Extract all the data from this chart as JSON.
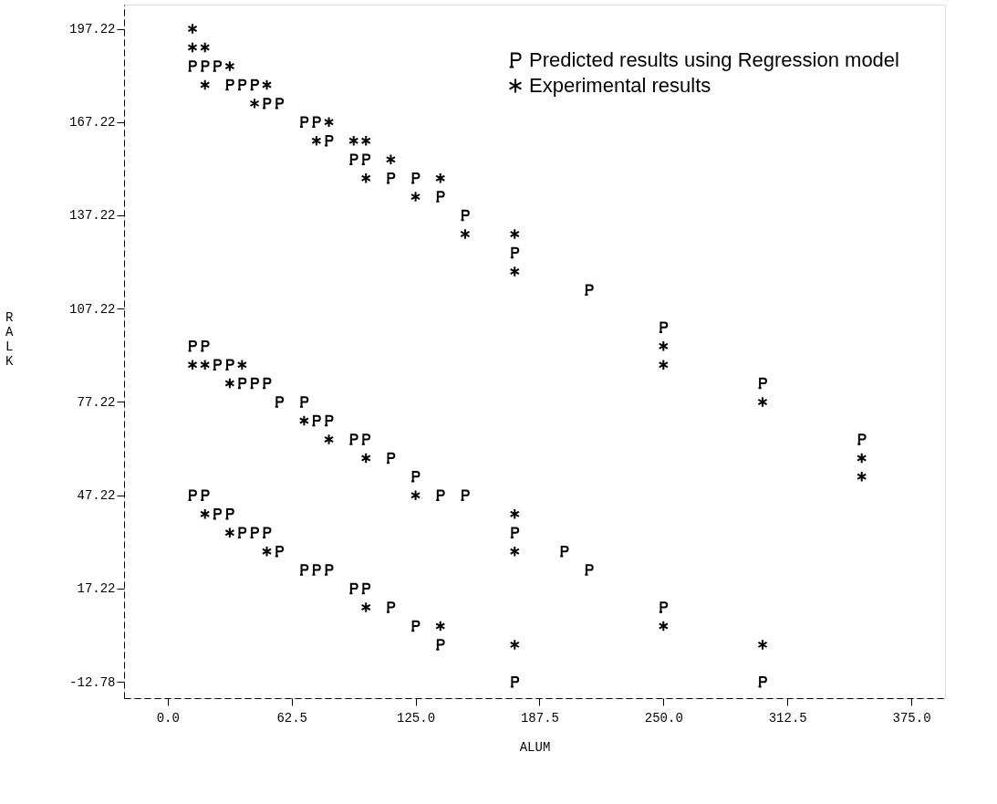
{
  "chart_data": {
    "type": "scatter",
    "xlabel": "ALUM",
    "ylabel": "RALK",
    "xlim": [
      -22,
      392
    ],
    "ylim": [
      -18,
      205
    ],
    "xticks": [
      {
        "value": 0,
        "label": "0.0"
      },
      62.5,
      {
        "value": 125,
        "label": "125.0"
      },
      187.5,
      {
        "value": 250,
        "label": "250.0"
      },
      312.5,
      {
        "value": 375,
        "label": "375.0"
      }
    ],
    "yticks": [
      -12.78,
      17.22,
      47.22,
      77.22,
      107.22,
      137.22,
      167.22,
      197.22
    ],
    "grid": false,
    "legend": "top right",
    "series": [
      {
        "name": "Predicted results using Regression model",
        "color": "#000000",
        "x": [
          12.5,
          18.8,
          25,
          31.3,
          37.5,
          43.8,
          50,
          56.3,
          68.8,
          75,
          81.3,
          93.8,
          100,
          112.5,
          125,
          137.5,
          150,
          175,
          212.5,
          250,
          300,
          350,
          12.5,
          18.8,
          25,
          31.3,
          37.5,
          43.8,
          50,
          56.3,
          68.8,
          75,
          81.3,
          93.8,
          100,
          112.5,
          125,
          137.5,
          150,
          175,
          200,
          212.5,
          12.5,
          18.8,
          25,
          31.3,
          37.5,
          43.8,
          50,
          56.3,
          68.8,
          75,
          81.3,
          93.8,
          100,
          112.5,
          125,
          137.5,
          175,
          250,
          300
        ],
        "values": [
          185.2,
          185.2,
          185.2,
          179.2,
          179.2,
          179.2,
          173.2,
          173.2,
          167.2,
          167.2,
          161.2,
          155.2,
          155.2,
          149.2,
          149.2,
          143.2,
          137.2,
          125.2,
          113.2,
          101.2,
          83.2,
          65.2,
          95.2,
          95.2,
          89.2,
          89.2,
          83.2,
          83.2,
          83.2,
          77.2,
          77.2,
          71.2,
          71.2,
          65.2,
          65.2,
          59.2,
          53.2,
          47.2,
          47.2,
          35.2,
          29.2,
          23.2,
          47.2,
          47.2,
          41.2,
          41.2,
          35.2,
          35.2,
          35.2,
          29.2,
          23.2,
          23.2,
          23.2,
          17.2,
          17.2,
          11.2,
          5.2,
          -0.8,
          -12.8,
          11.2,
          -12.8
        ]
      },
      {
        "name": "Experimental results",
        "color": "#000000",
        "x": [
          12.5,
          12.5,
          18.8,
          31.3,
          18.8,
          50,
          43.8,
          81.3,
          75,
          93.8,
          100,
          112.5,
          100,
          137.5,
          125,
          150,
          175,
          175,
          250,
          250,
          300,
          350,
          350,
          12.5,
          18.8,
          37.5,
          31.3,
          68.8,
          81.3,
          100,
          125,
          175,
          175,
          18.8,
          31.3,
          50,
          100,
          137.5,
          175,
          250,
          300
        ],
        "values": [
          197.2,
          191.2,
          191.2,
          185.2,
          179.2,
          179.2,
          173.2,
          167.2,
          161.2,
          161.2,
          161.2,
          155.2,
          149.2,
          149.2,
          143.2,
          131.2,
          131.2,
          119.2,
          95.2,
          89.2,
          77.2,
          59.2,
          53.2,
          89.2,
          89.2,
          89.2,
          83.2,
          71.2,
          65.2,
          59.2,
          47.2,
          41.2,
          29.2,
          41.2,
          35.2,
          29.2,
          11.2,
          5.2,
          -0.8,
          5.2,
          -0.8
        ]
      }
    ]
  }
}
